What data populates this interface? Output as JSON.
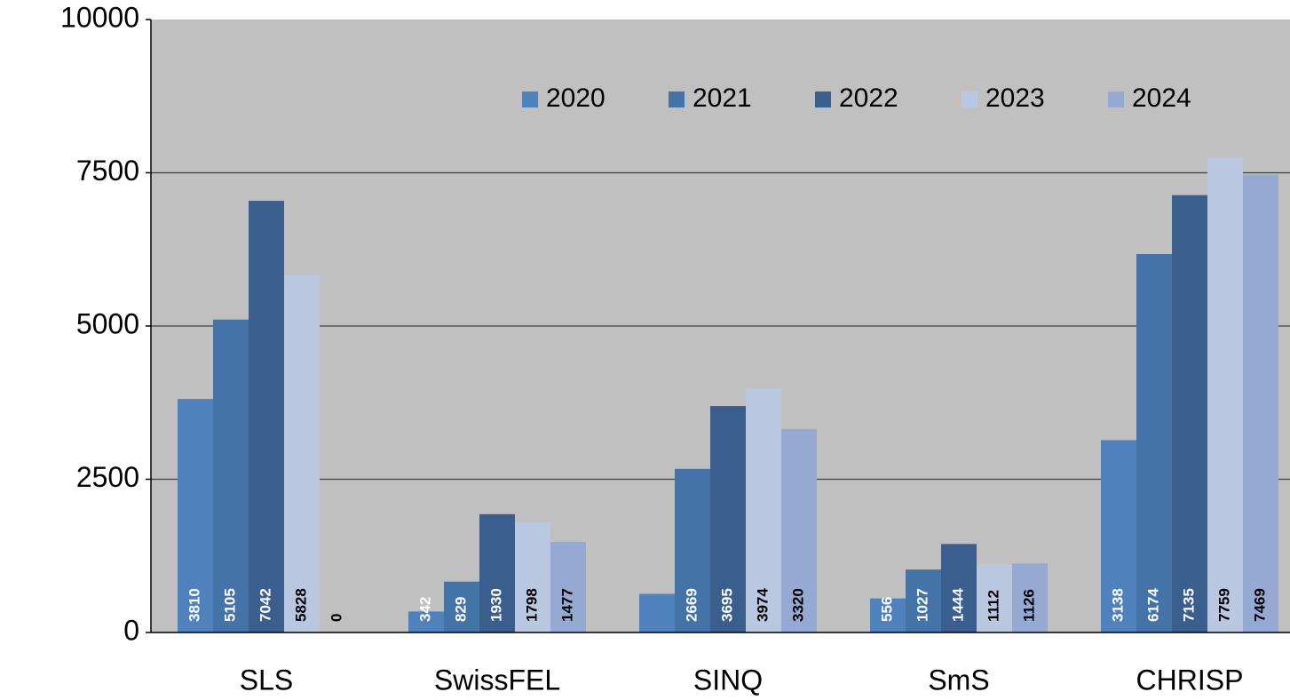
{
  "chart_data": {
    "type": "bar",
    "categories": [
      "SLS",
      "SwissFEL",
      "SINQ",
      "SmS",
      "CHRISP"
    ],
    "series": [
      {
        "name": "2020",
        "color": "#4f81bd",
        "values": [
          3810,
          342,
          630,
          556,
          3138
        ],
        "value_labels": [
          "3810",
          "342",
          null,
          "556",
          "3138"
        ]
      },
      {
        "name": "2021",
        "color": "#4473a8",
        "values": [
          5105,
          829,
          2669,
          1027,
          6174
        ]
      },
      {
        "name": "2022",
        "color": "#3a5f8f",
        "values": [
          7042,
          1930,
          3695,
          1444,
          7135
        ]
      },
      {
        "name": "2023",
        "color": "#bac7e1",
        "values": [
          5828,
          1798,
          3974,
          1112,
          7759
        ]
      },
      {
        "name": "2024",
        "color": "#95a9d3",
        "values": [
          0,
          1477,
          3320,
          1126,
          7469
        ]
      }
    ],
    "ylim": [
      0,
      10000
    ],
    "yticks": [
      0,
      2500,
      5000,
      7500,
      10000
    ],
    "grid": true,
    "legend": "top"
  }
}
